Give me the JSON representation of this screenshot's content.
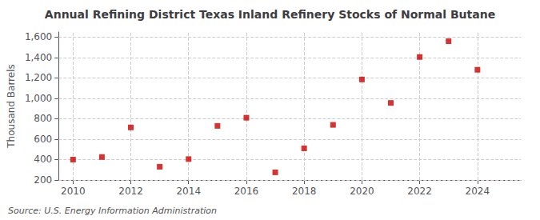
{
  "chart_data": {
    "type": "scatter",
    "title": "Annual Refining District Texas Inland Refinery Stocks of Normal Butane",
    "ylabel": "Thousand Barrels",
    "source": "Source: U.S. Energy Information Administration",
    "x": [
      2010,
      2011,
      2012,
      2013,
      2014,
      2015,
      2016,
      2017,
      2018,
      2019,
      2020,
      2021,
      2022,
      2023,
      2024
    ],
    "values": [
      400,
      425,
      715,
      330,
      405,
      730,
      810,
      275,
      510,
      740,
      1185,
      955,
      1405,
      1560,
      1280
    ],
    "color": "#cc0000",
    "marker": "square",
    "xlim": [
      2009.5,
      2025.5
    ],
    "ylim": [
      200,
      1650
    ],
    "xticks": [
      2010,
      2012,
      2014,
      2016,
      2018,
      2020,
      2022,
      2024
    ],
    "yticks": [
      200,
      400,
      600,
      800,
      {
        "value": 1000,
        "label": "1,000"
      },
      {
        "value": 1200,
        "label": "1,200"
      },
      {
        "value": 1400,
        "label": "1,400"
      },
      {
        "value": 1600,
        "label": "1,600"
      }
    ],
    "grid": true
  }
}
